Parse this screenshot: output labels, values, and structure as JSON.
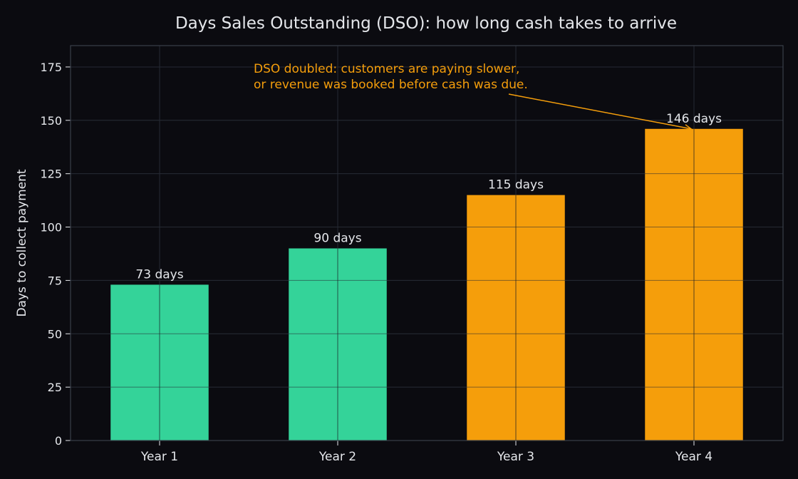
{
  "chart_data": {
    "type": "bar",
    "title": "Days Sales Outstanding (DSO): how long cash takes to arrive",
    "xlabel": "",
    "ylabel": "Days to collect payment",
    "categories": [
      "Year 1",
      "Year 2",
      "Year 3",
      "Year 4"
    ],
    "values": [
      73,
      90,
      115,
      146
    ],
    "data_labels": [
      "73 days",
      "90 days",
      "115 days",
      "146 days"
    ],
    "ylim": [
      0,
      185
    ],
    "yticks": [
      0,
      25,
      50,
      75,
      100,
      125,
      150,
      175
    ],
    "grid": true,
    "legend": "none",
    "bar_colors": [
      "#34d399",
      "#34d399",
      "#f59e0b",
      "#f59e0b"
    ],
    "annotation": {
      "lines": [
        "DSO doubled: customers are paying slower,",
        "or revenue was booked before cash was due."
      ],
      "target_category": "Year 4",
      "target_value": 146,
      "color": "#f59e0b"
    },
    "colors": {
      "background": "#0b0b10",
      "grid": "#262a33",
      "axis": "#3a3f4a",
      "text": "#e5e7eb"
    }
  }
}
